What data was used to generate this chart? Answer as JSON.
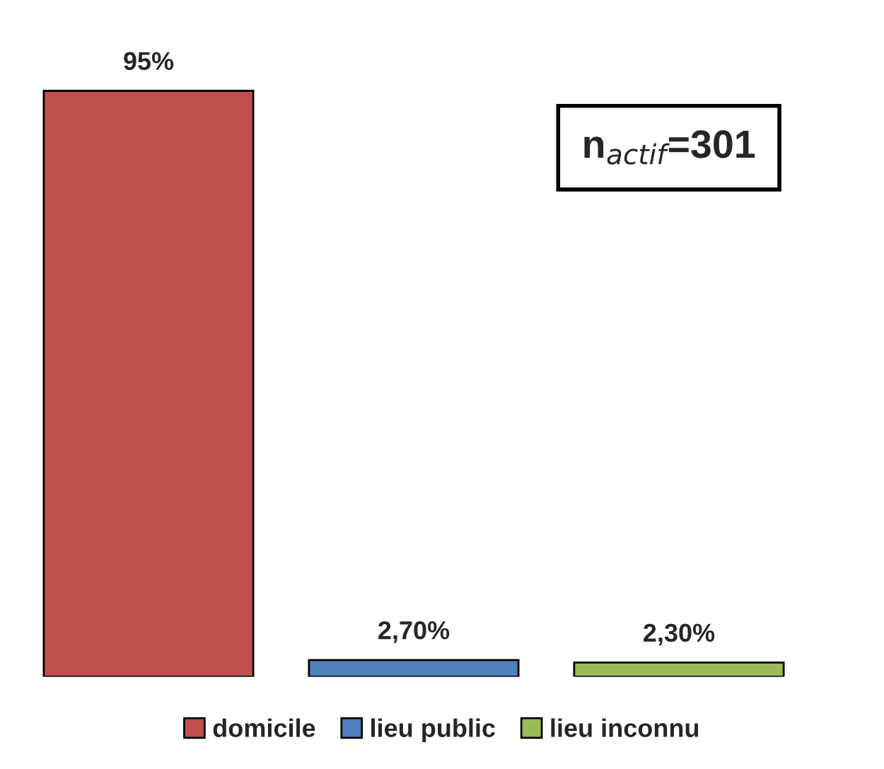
{
  "chart_data": {
    "type": "bar",
    "categories": [
      null
    ],
    "series": [
      {
        "name": "domicile",
        "color": "#c0504d",
        "values": [
          95
        ],
        "value_labels": [
          "95%"
        ]
      },
      {
        "name": "lieu public",
        "color": "#4f81bd",
        "values": [
          2.7
        ],
        "value_labels": [
          "2,70%"
        ]
      },
      {
        "name": "lieu inconnu",
        "color": "#9bbb59",
        "values": [
          2.3
        ],
        "value_labels": [
          "2,30%"
        ]
      }
    ],
    "annotations": [
      "n$_{actif}$=301"
    ],
    "legend": "bottom",
    "tick_labels": false,
    "grid": false
  }
}
